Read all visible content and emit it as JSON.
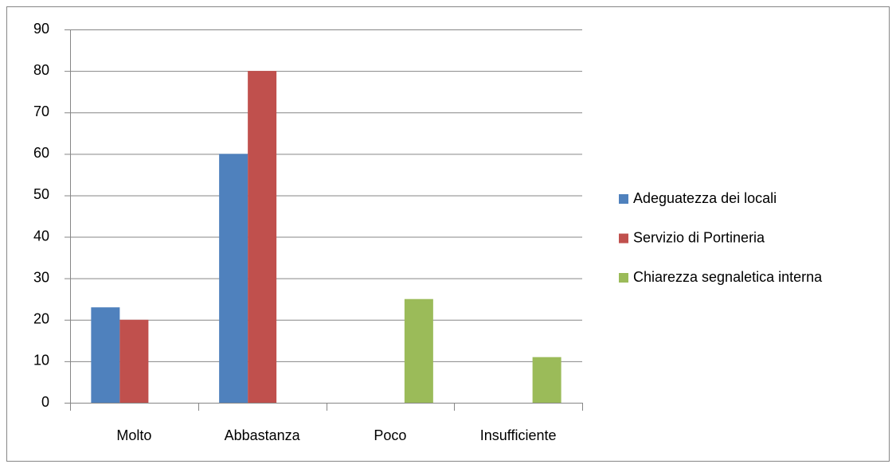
{
  "chart_data": {
    "type": "bar",
    "categories": [
      "Molto",
      "Abbastanza",
      "Poco",
      "Insufficiente"
    ],
    "series": [
      {
        "name": "Adeguatezza dei locali",
        "color": "#4f81bd",
        "values": [
          23,
          60,
          0,
          0
        ]
      },
      {
        "name": "Servizio di Portineria",
        "color": "#c0504d",
        "values": [
          20,
          80,
          0,
          0
        ]
      },
      {
        "name": "Chiarezza segnaletica interna",
        "color": "#9bbb59",
        "values": [
          0,
          0,
          25,
          11
        ]
      }
    ],
    "ylim": [
      0,
      90
    ],
    "yticks": [
      0,
      10,
      20,
      30,
      40,
      50,
      60,
      70,
      80,
      90
    ],
    "grid": true,
    "legend": "right"
  }
}
